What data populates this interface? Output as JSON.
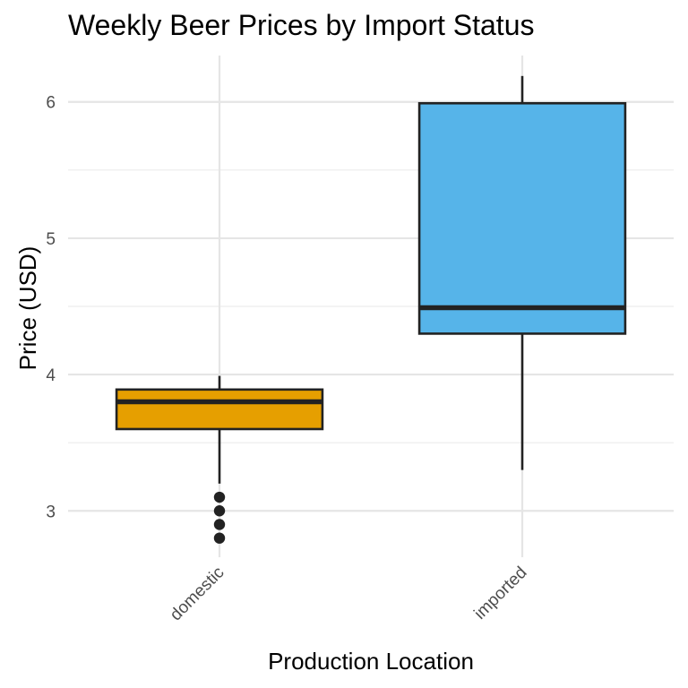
{
  "chart_data": {
    "type": "boxplot",
    "title": "Weekly Beer Prices by Import Status",
    "xlabel": "Production Location",
    "ylabel": "Price (USD)",
    "ylim": [
      2.66,
      6.34
    ],
    "yticks": [
      3,
      4,
      5,
      6
    ],
    "y_minor_ticks": [
      3.5,
      4.5,
      5.5
    ],
    "grid": true,
    "legend": "none",
    "categories": [
      "domestic",
      "imported"
    ],
    "boxes": [
      {
        "category": "domestic",
        "whisker_low": 3.2,
        "q1": 3.6,
        "median": 3.8,
        "q3": 3.89,
        "whisker_high": 3.99,
        "outliers": [
          3.1,
          3.0,
          2.9,
          2.8
        ],
        "color": "#E69F00"
      },
      {
        "category": "imported",
        "whisker_low": 3.3,
        "q1": 4.3,
        "median": 4.49,
        "q3": 5.99,
        "whisker_high": 6.19,
        "outliers": [],
        "color": "#56B4E9"
      }
    ]
  }
}
